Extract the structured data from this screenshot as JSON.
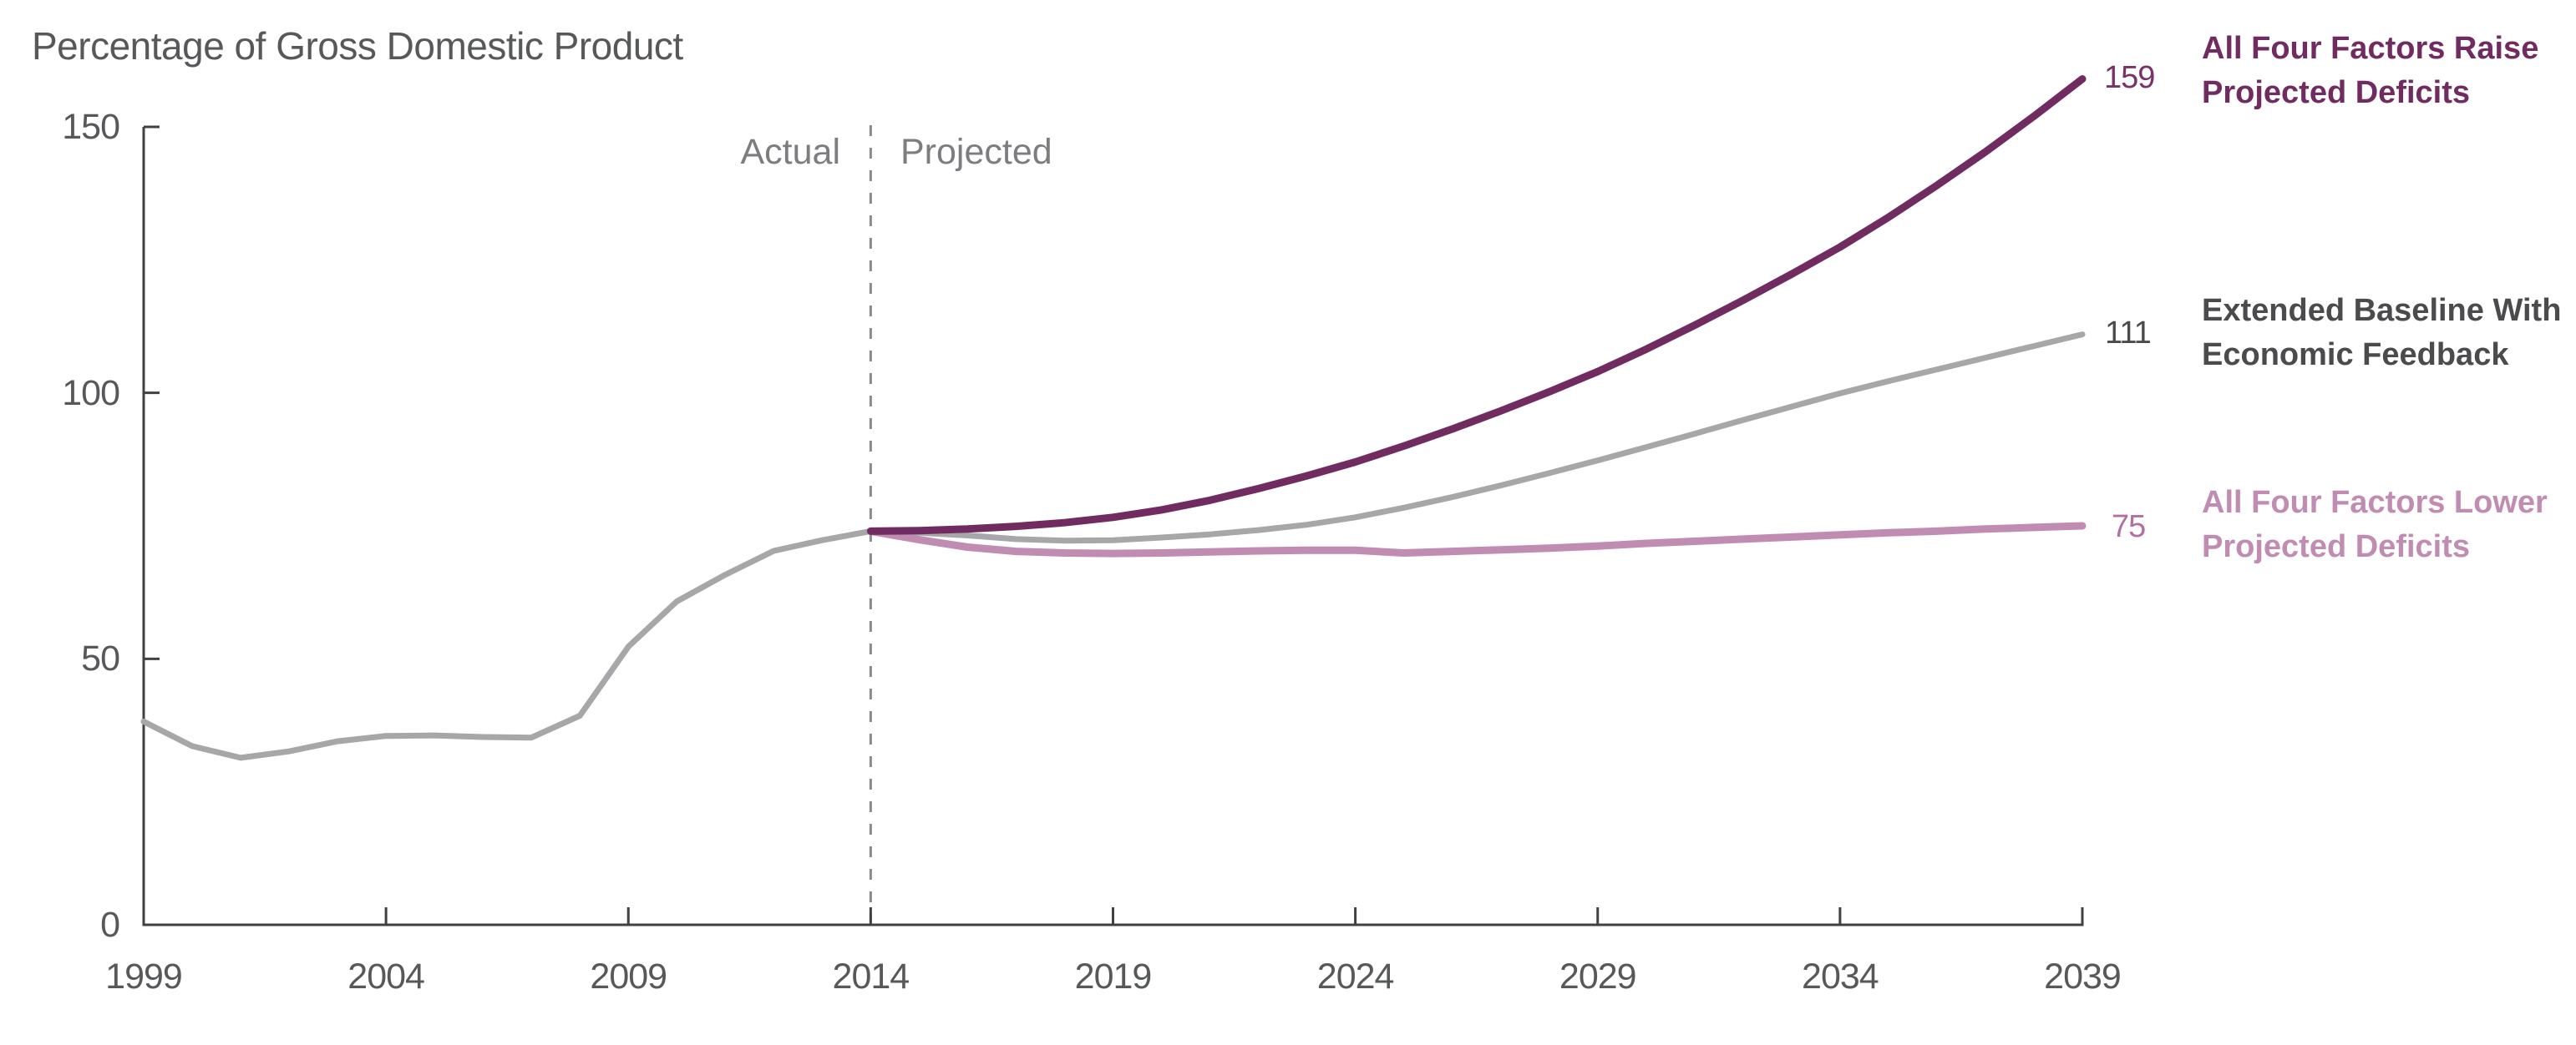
{
  "page": {
    "background_color": "#ffffff"
  },
  "chart_data": {
    "type": "line",
    "title": "Percentage of Gross Domestic Product",
    "region_labels": {
      "actual": "Actual",
      "projected": "Projected"
    },
    "divider_year": 2014,
    "xlim": [
      1999,
      2039
    ],
    "ylim": [
      0,
      150
    ],
    "x_ticks": [
      1999,
      2004,
      2009,
      2014,
      2019,
      2024,
      2029,
      2034,
      2039
    ],
    "y_ticks": [
      0,
      50,
      100,
      150
    ],
    "grid": false,
    "legend_position": "right",
    "colors": {
      "axis": "#414042",
      "tick_label": "#57585a",
      "title": "#57585a",
      "region_label": "#7c7d80",
      "divider": "#8a8a8a"
    },
    "series": [
      {
        "name": "All Four Factors Raise Projected Deficits",
        "legend_label": "All Four Factors Raise\nProjected Deficits",
        "end_label": "159",
        "line_color": "#702c60",
        "label_color": "#7a3166",
        "line_width": 9,
        "years": [
          2014,
          2015,
          2016,
          2017,
          2018,
          2019,
          2020,
          2021,
          2022,
          2023,
          2024,
          2025,
          2026,
          2027,
          2028,
          2029,
          2030,
          2031,
          2032,
          2033,
          2034,
          2035,
          2036,
          2037,
          2038,
          2039
        ],
        "values": [
          74,
          74.1,
          74.4,
          74.9,
          75.6,
          76.6,
          78,
          79.8,
          82,
          84.4,
          87,
          90,
          93.2,
          96.6,
          100.2,
          104,
          108.2,
          112.7,
          117.4,
          122.3,
          127.4,
          133,
          139,
          145.3,
          152,
          159
        ]
      },
      {
        "name": "Extended Baseline With Economic Feedback",
        "legend_label": "Extended Baseline With\nEconomic Feedback",
        "end_label": "111",
        "line_color": "#a7a7a9",
        "label_color": "#4b4b4d",
        "line_width": 7,
        "years": [
          1999,
          2000,
          2001,
          2002,
          2003,
          2004,
          2005,
          2006,
          2007,
          2008,
          2009,
          2010,
          2011,
          2012,
          2013,
          2014,
          2015,
          2016,
          2017,
          2018,
          2019,
          2020,
          2021,
          2022,
          2023,
          2024,
          2025,
          2026,
          2027,
          2028,
          2029,
          2030,
          2031,
          2032,
          2033,
          2034,
          2035,
          2036,
          2037,
          2038,
          2039
        ],
        "values": [
          38.2,
          33.6,
          31.4,
          32.6,
          34.5,
          35.5,
          35.6,
          35.3,
          35.2,
          39.3,
          52.3,
          60.8,
          65.8,
          70.3,
          72.3,
          74,
          73.7,
          73.2,
          72.5,
          72.2,
          72.3,
          72.8,
          73.4,
          74.2,
          75.2,
          76.6,
          78.4,
          80.4,
          82.6,
          84.9,
          87.3,
          89.8,
          92.3,
          94.9,
          97.4,
          99.9,
          102.2,
          104.4,
          106.6,
          108.8,
          111
        ]
      },
      {
        "name": "All Four Factors Lower Projected Deficits",
        "legend_label": "All Four Factors Lower\nProjected Deficits",
        "end_label": "75",
        "line_color": "#c08cb2",
        "label_color": "#b1719f",
        "line_width": 9,
        "years": [
          2014,
          2015,
          2016,
          2017,
          2018,
          2019,
          2020,
          2021,
          2022,
          2023,
          2024,
          2025,
          2026,
          2027,
          2028,
          2029,
          2030,
          2031,
          2032,
          2033,
          2034,
          2035,
          2036,
          2037,
          2038,
          2039
        ],
        "values": [
          74,
          72.4,
          71,
          70.2,
          69.9,
          69.8,
          69.9,
          70.1,
          70.3,
          70.4,
          70.4,
          69.9,
          70.2,
          70.5,
          70.8,
          71.2,
          71.7,
          72.1,
          72.5,
          72.9,
          73.3,
          73.7,
          74,
          74.4,
          74.7,
          75
        ]
      }
    ]
  }
}
